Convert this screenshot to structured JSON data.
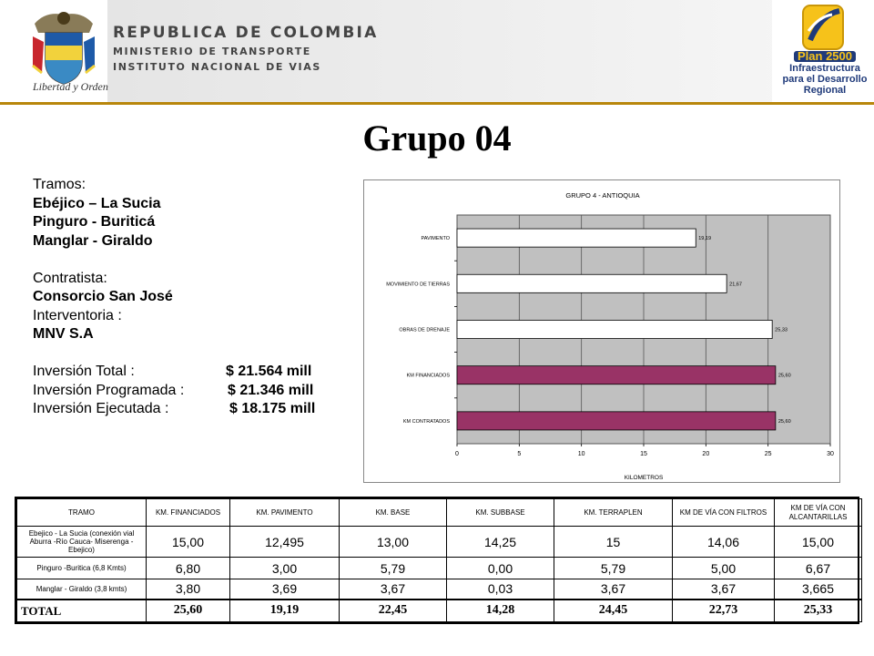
{
  "header": {
    "seal_motto": "Libertad y Orden",
    "gov_title": "REPUBLICA DE COLOMBIA",
    "gov_sub1": "MINISTERIO DE TRANSPORTE",
    "gov_sub2": "INSTITUTO NACIONAL DE VIAS",
    "plan_name": "Plan 2500",
    "plan_line1": "Infraestructura",
    "plan_line2": "para el Desarrollo",
    "plan_line3": "Regional",
    "accent_color": "#b8860b"
  },
  "title": "Grupo 04",
  "info": {
    "tramos_label": "Tramos:",
    "tramos": [
      "Ebéjico – La Sucia",
      "Pinguro - Buriticá",
      "Manglar - Giraldo"
    ],
    "contratista_label": "Contratista:",
    "contratista": "Consorcio San José",
    "interventoria_label": "Interventoria :",
    "interventoria": "MNV S.A",
    "inversion_total_label": "Inversión Total :",
    "inversion_total": "$ 21.564 mill",
    "inversion_programada_label": "Inversión Programada :",
    "inversion_programada": "$ 21.346 mill",
    "inversion_ejecutada_label": "Inversión Ejecutada :",
    "inversion_ejecutada": "$ 18.175 mill"
  },
  "chart_data": {
    "type": "bar",
    "orientation": "horizontal",
    "title": "GRUPO 4 - ANTIOQUIA",
    "xlabel": "KILOMETROS",
    "ylabel": "",
    "categories": [
      "PAVIMENTO",
      "MOVIMIENTO DE TIERRAS",
      "OBRAS DE DRENAJE",
      "KM FINANCIADOS",
      "KM CONTRATADOS"
    ],
    "values": [
      19.19,
      21.67,
      25.33,
      25.6,
      25.6
    ],
    "value_labels": [
      "19,19",
      "21,67",
      "25,33",
      "25,60",
      "25,60"
    ],
    "bar_colors": [
      "#ffffff",
      "#ffffff",
      "#ffffff",
      "#993366",
      "#993366"
    ],
    "plot_bg": "#c0c0c0",
    "xlim": [
      0,
      30
    ],
    "xticks": [
      "0",
      "5",
      "10",
      "15",
      "20",
      "25",
      "30"
    ],
    "grid": true
  },
  "table": {
    "headers": [
      "TRAMO",
      "KM. FINANCIADOS",
      "KM. PAVIMENTO",
      "KM. BASE",
      "KM. SUBBASE",
      "KM. TERRAPLEN",
      "KM DE VÍA CON FILTROS",
      "KM DE VÍA CON ALCANTARILLAS"
    ],
    "rows": [
      {
        "tramo": "Ebejico - La Sucia (conexión vial Aburra -Río Cauca- Miserenga - Ebejico)",
        "cells": [
          "15,00",
          "12,495",
          "13,00",
          "14,25",
          "15",
          "14,06",
          "15,00"
        ]
      },
      {
        "tramo": "Pinguro -Buritica (6,8 Kmts)",
        "cells": [
          "6,80",
          "3,00",
          "5,79",
          "0,00",
          "5,79",
          "5,00",
          "6,67"
        ]
      },
      {
        "tramo": "Manglar - Giraldo (3,8 kmts)",
        "cells": [
          "3,80",
          "3,69",
          "3,67",
          "0,03",
          "3,67",
          "3,67",
          "3,665"
        ]
      }
    ],
    "total": {
      "tramo": "TOTAL",
      "cells": [
        "25,60",
        "19,19",
        "22,45",
        "14,28",
        "24,45",
        "22,73",
        "25,33"
      ]
    }
  }
}
